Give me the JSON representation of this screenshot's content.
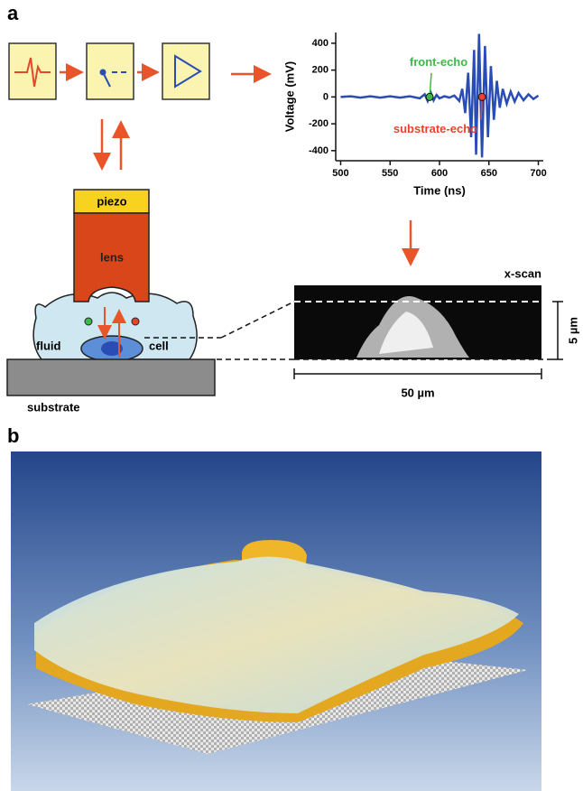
{
  "panel_labels": [
    "a",
    "b"
  ],
  "diagram": {
    "piezo": "piezo",
    "lens": "lens",
    "fluid": "fluid",
    "cell": "cell",
    "substrate": "substrate",
    "x_scan": "x-scan",
    "scale_vertical": "5 µm",
    "scale_horizontal": "50 µm"
  },
  "chart_data": {
    "type": "line",
    "x_label": "Time (ns)",
    "y_label": "Voltage (mV)",
    "x": [
      500,
      510,
      520,
      530,
      540,
      550,
      560,
      570,
      580,
      585,
      588,
      591,
      594,
      597,
      600,
      605,
      610,
      615,
      620,
      623,
      626,
      629,
      632,
      635,
      637,
      640,
      643,
      646,
      649,
      652,
      655,
      658,
      661,
      664,
      668,
      672,
      676,
      680,
      685,
      690,
      695,
      700
    ],
    "series": [
      {
        "color": "#2a4db5",
        "values": [
          0,
          5,
          -5,
          5,
          -5,
          5,
          -5,
          5,
          -10,
          20,
          -30,
          35,
          -25,
          15,
          -10,
          5,
          -5,
          10,
          -30,
          60,
          -120,
          180,
          -300,
          350,
          -430,
          470,
          -450,
          380,
          -300,
          230,
          -170,
          120,
          -80,
          60,
          -50,
          40,
          -35,
          30,
          -25,
          20,
          -15,
          10
        ]
      }
    ],
    "xlim": [
      495,
      705
    ],
    "ylim": [
      -475,
      480
    ],
    "xticks": [
      500,
      550,
      600,
      650,
      700
    ],
    "yticks": [
      -400,
      -200,
      0,
      200,
      400
    ],
    "markers": [
      {
        "label": "front-echo",
        "x": 590,
        "y": 0,
        "color": "#3db84a"
      },
      {
        "label": "substrate-echo",
        "x": 643,
        "y": 0,
        "color": "#e8432a"
      }
    ]
  }
}
